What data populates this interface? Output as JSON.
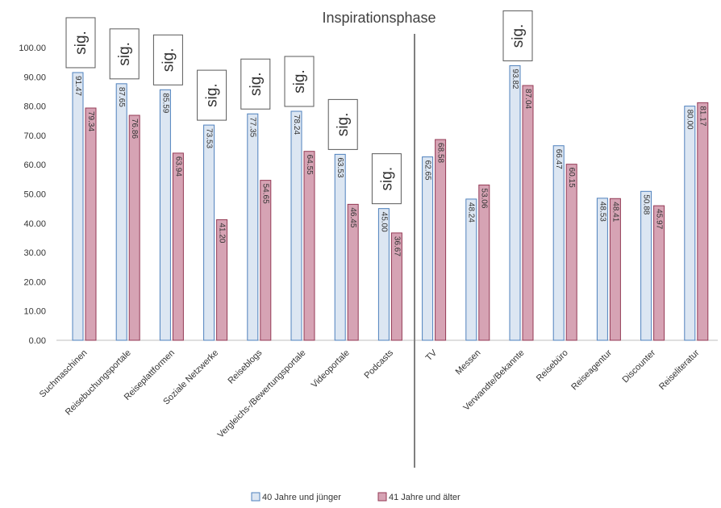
{
  "chart_data": {
    "type": "bar",
    "title": "Inspirationsphase",
    "xlabel": "",
    "ylabel": "",
    "ylim": [
      0,
      100
    ],
    "y_ticks": [
      "0.00",
      "10.00",
      "20.00",
      "30.00",
      "40.00",
      "50.00",
      "60.00",
      "70.00",
      "80.00",
      "90.00",
      "100.00"
    ],
    "grid": false,
    "legend_position": "bottom",
    "categories": [
      "Suchmaschinen",
      "Reisebuchungsportale",
      "Reiseplattformen",
      "Soziale Netzwerke",
      "Reiseblogs",
      "Vergleichs-/Bewertungsportale",
      "Videoportale",
      "Podcasts",
      "TV",
      "Messen",
      "Verwandte/Bekannte",
      "Reisebüro",
      "Reiseagentur",
      "Discounter",
      "Reiseliteratur"
    ],
    "series": [
      {
        "name": "40 Jahre und jünger",
        "color": "#dce6f2",
        "stroke": "#4f81bd",
        "values": [
          91.47,
          87.65,
          85.59,
          73.53,
          77.35,
          78.24,
          63.53,
          45.0,
          62.65,
          48.24,
          93.82,
          66.47,
          48.53,
          50.88,
          80.0
        ],
        "value_labels": [
          "91.47",
          "87.65",
          "85.59",
          "73.53",
          "77.35",
          "78.24",
          "63.53",
          "45.00",
          "62.65",
          "48.24",
          "93.82",
          "66.47",
          "48.53",
          "50.88",
          "80.00"
        ]
      },
      {
        "name": "41 Jahre und älter",
        "color": "#d6a3b4",
        "stroke": "#943a55",
        "values": [
          79.34,
          76.86,
          63.94,
          41.2,
          54.65,
          64.55,
          46.45,
          36.67,
          68.58,
          53.06,
          87.04,
          60.15,
          48.41,
          45.97,
          81.17
        ],
        "value_labels": [
          "79.34",
          "76.86",
          "63.94",
          "41.20",
          "54.65",
          "64.55",
          "46.45",
          "36.67",
          "68.58",
          "53.06",
          "87.04",
          "60.15",
          "48.41",
          "45.97",
          "81.17"
        ]
      }
    ],
    "annotations": {
      "sig_label": "sig.",
      "sig_categories": [
        "Suchmaschinen",
        "Reisebuchungsportale",
        "Reiseplattformen",
        "Soziale Netzwerke",
        "Reiseblogs",
        "Vergleichs-/Bewertungsportale",
        "Videoportale",
        "Podcasts",
        "Verwandte/Bekannte"
      ],
      "divider_after_category": "Podcasts"
    }
  }
}
